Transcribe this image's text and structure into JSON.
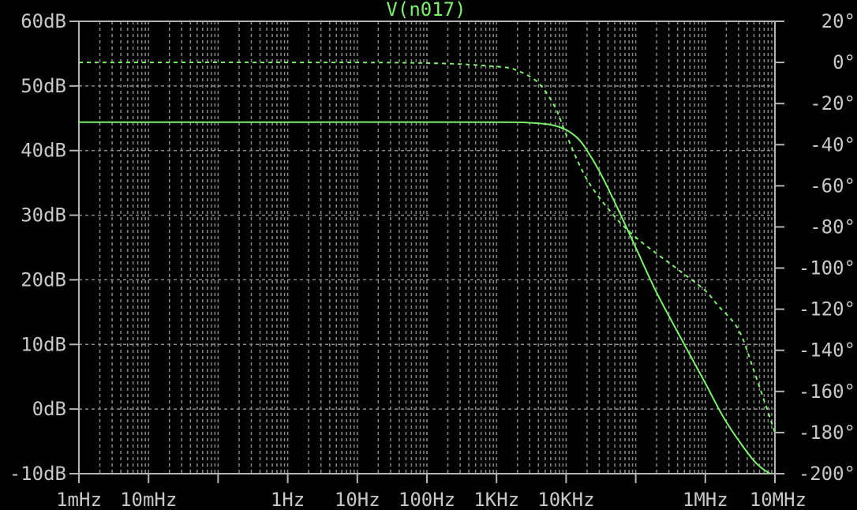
{
  "chart_data": {
    "type": "line",
    "title": "V(n017)",
    "x_scale": "log",
    "x_range_hz": [
      0.001,
      10000000
    ],
    "y_left_range_db": [
      -10,
      60
    ],
    "y_right_range_deg": [
      -200,
      20
    ],
    "x_tick_labels": [
      {
        "value": 0.001,
        "label": "1mHz"
      },
      {
        "value": 0.01,
        "label": "10mHz"
      },
      {
        "value": 1,
        "label": "1Hz"
      },
      {
        "value": 10,
        "label": "10Hz"
      },
      {
        "value": 100,
        "label": "100Hz"
      },
      {
        "value": 1000,
        "label": "1KHz"
      },
      {
        "value": 10000,
        "label": "10KHz"
      },
      {
        "value": 1000000,
        "label": "1MHz"
      },
      {
        "value": 10000000,
        "label": "10MHz"
      }
    ],
    "y_left_ticks": [
      {
        "value": 60,
        "label": "60dB"
      },
      {
        "value": 50,
        "label": "50dB"
      },
      {
        "value": 40,
        "label": "40dB"
      },
      {
        "value": 30,
        "label": "30dB"
      },
      {
        "value": 20,
        "label": "20dB"
      },
      {
        "value": 10,
        "label": "10dB"
      },
      {
        "value": 0,
        "label": "0dB"
      },
      {
        "value": -10,
        "label": "-10dB"
      }
    ],
    "y_right_ticks": [
      {
        "value": 20,
        "label": "20°"
      },
      {
        "value": 0,
        "label": "0°"
      },
      {
        "value": -20,
        "label": "-20°"
      },
      {
        "value": -40,
        "label": "-40°"
      },
      {
        "value": -60,
        "label": "-60°"
      },
      {
        "value": -80,
        "label": "-80°"
      },
      {
        "value": -100,
        "label": "-100°"
      },
      {
        "value": -120,
        "label": "-120°"
      },
      {
        "value": -140,
        "label": "-140°"
      },
      {
        "value": -160,
        "label": "-160°"
      },
      {
        "value": -180,
        "label": "-180°"
      },
      {
        "value": -200,
        "label": "-200°"
      }
    ],
    "grid": true,
    "series": [
      {
        "name": "V(n017)",
        "axis": "left",
        "unit": "dB",
        "style": "solid",
        "color": "#7cf26a",
        "x": [
          0.001,
          1,
          1000,
          3000,
          6000,
          10000,
          15000,
          20000,
          30000,
          50000,
          100000,
          200000,
          500000,
          1000000,
          2000000,
          5000000,
          8500000
        ],
        "y": [
          44.4,
          44.4,
          44.4,
          44.3,
          44.0,
          43.2,
          41.8,
          40.0,
          36.8,
          32.0,
          25.0,
          18.0,
          10.0,
          4.0,
          -2.0,
          -8.0,
          -10.0
        ]
      },
      {
        "name": "",
        "axis": "right",
        "unit": "deg",
        "style": "dashed",
        "color": "#7cf26a",
        "x": [
          0.001,
          1,
          100,
          1000,
          2000,
          4000,
          7000,
          10000,
          20000,
          50000,
          100000,
          200000,
          500000,
          1000000,
          1500000,
          3000000,
          5000000,
          10000000
        ],
        "y": [
          0,
          0,
          -0.3,
          -2,
          -4,
          -10,
          -22,
          -35,
          -57,
          -75,
          -85,
          -93,
          -103,
          -111,
          -118,
          -130,
          -150,
          -180
        ]
      }
    ]
  }
}
